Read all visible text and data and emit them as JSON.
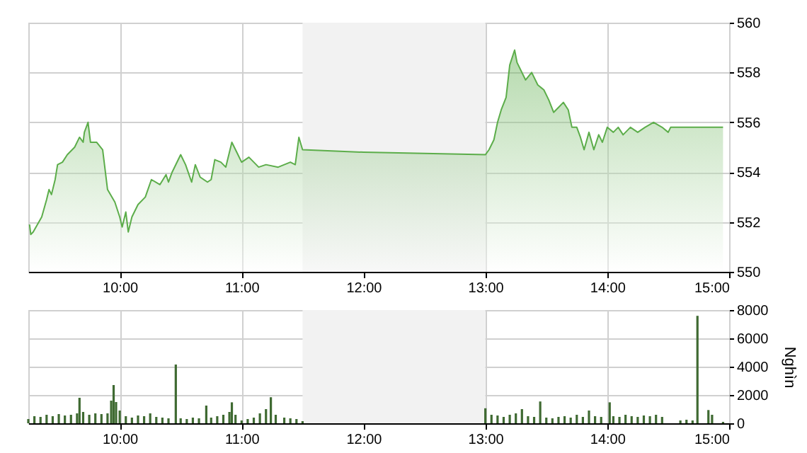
{
  "chart_data": [
    {
      "type": "area",
      "xlim": [
        9.25,
        15
      ],
      "xticks": [
        {
          "value": 10,
          "label": "10:00"
        },
        {
          "value": 11,
          "label": "11:00"
        },
        {
          "value": 12,
          "label": "12:00"
        },
        {
          "value": 13,
          "label": "13:00"
        },
        {
          "value": 14,
          "label": "14:00"
        },
        {
          "value": 15,
          "label": "15:00"
        }
      ],
      "ylim": [
        550,
        560
      ],
      "yticks": [
        550,
        552,
        554,
        556,
        558,
        560
      ],
      "grid": true,
      "bands": [
        {
          "axis": "x",
          "from": 11.5,
          "to": 13,
          "color": "#f2f2f2"
        }
      ],
      "series": [
        {
          "color": "#5cad4a",
          "x": [
            9.26,
            9.27,
            9.29,
            9.36,
            9.4,
            9.42,
            9.44,
            9.47,
            9.49,
            9.53,
            9.57,
            9.63,
            9.67,
            9.7,
            9.71,
            9.74,
            9.76,
            9.81,
            9.86,
            9.9,
            9.96,
            10.0,
            10.02,
            10.05,
            10.07,
            10.1,
            10.15,
            10.21,
            10.26,
            10.33,
            10.38,
            10.4,
            10.43,
            10.5,
            10.54,
            10.59,
            10.62,
            10.66,
            10.72,
            10.75,
            10.78,
            10.83,
            10.87,
            10.92,
            10.97,
            11.0,
            11.06,
            11.14,
            11.2,
            11.3,
            11.4,
            11.44,
            11.47,
            11.5,
            12.0,
            13.0,
            13.03,
            13.07,
            13.1,
            13.13,
            13.17,
            13.2,
            13.24,
            13.26,
            13.33,
            13.38,
            13.43,
            13.48,
            13.52,
            13.56,
            13.6,
            13.64,
            13.68,
            13.71,
            13.75,
            13.78,
            13.81,
            13.85,
            13.89,
            13.93,
            13.96,
            14.0,
            14.05,
            14.09,
            14.13,
            14.19,
            14.25,
            14.31,
            14.38,
            14.45,
            14.5,
            14.52,
            14.95
          ],
          "values": [
            551.9,
            551.5,
            551.6,
            552.2,
            552.9,
            553.3,
            553.1,
            553.7,
            554.3,
            554.4,
            554.7,
            555.0,
            555.4,
            555.2,
            555.6,
            556.0,
            555.2,
            555.2,
            554.9,
            553.3,
            552.8,
            552.2,
            551.8,
            552.4,
            551.6,
            552.2,
            552.7,
            553.0,
            553.7,
            553.5,
            553.9,
            553.6,
            554.0,
            554.7,
            554.3,
            553.6,
            554.3,
            553.8,
            553.6,
            553.7,
            554.5,
            554.4,
            554.2,
            555.2,
            554.7,
            554.4,
            554.6,
            554.2,
            554.3,
            554.2,
            554.4,
            554.3,
            555.4,
            554.9,
            554.8,
            554.7,
            554.9,
            555.3,
            556.0,
            556.5,
            557.0,
            558.3,
            558.9,
            558.4,
            557.7,
            558.0,
            557.5,
            557.3,
            556.9,
            556.4,
            556.6,
            556.8,
            556.5,
            555.8,
            555.8,
            555.4,
            554.9,
            555.6,
            554.9,
            555.5,
            555.2,
            555.8,
            555.6,
            555.8,
            555.5,
            555.8,
            555.6,
            555.8,
            556.0,
            555.8,
            555.6,
            555.8,
            555.8
          ]
        }
      ]
    },
    {
      "type": "bar",
      "xlim": [
        9.25,
        15
      ],
      "xticks": [
        {
          "value": 10,
          "label": "10:00"
        },
        {
          "value": 11,
          "label": "11:00"
        },
        {
          "value": 12,
          "label": "12:00"
        },
        {
          "value": 13,
          "label": "13:00"
        },
        {
          "value": 14,
          "label": "14:00"
        },
        {
          "value": 15,
          "label": "15:00"
        }
      ],
      "ylim": [
        0,
        8000
      ],
      "yticks": [
        0,
        2000,
        4000,
        6000,
        8000
      ],
      "ylabel": "Nghìn",
      "grid": true,
      "bands": [
        {
          "axis": "x",
          "from": 11.5,
          "to": 13,
          "color": "#f2f2f2"
        }
      ],
      "series": [
        {
          "color": "#3f6a32",
          "x": [
            9.25,
            9.3,
            9.35,
            9.4,
            9.45,
            9.5,
            9.55,
            9.6,
            9.65,
            9.67,
            9.7,
            9.75,
            9.8,
            9.85,
            9.9,
            9.93,
            9.95,
            9.97,
            10.0,
            10.05,
            10.1,
            10.15,
            10.2,
            10.25,
            10.3,
            10.35,
            10.4,
            10.46,
            10.5,
            10.55,
            10.6,
            10.65,
            10.71,
            10.75,
            10.8,
            10.85,
            10.9,
            10.92,
            10.95,
            11.0,
            11.05,
            11.1,
            11.15,
            11.2,
            11.24,
            11.28,
            11.35,
            11.4,
            11.45,
            11.5,
            13.0,
            13.05,
            13.1,
            13.15,
            13.2,
            13.25,
            13.3,
            13.35,
            13.4,
            13.45,
            13.5,
            13.55,
            13.6,
            13.65,
            13.7,
            13.75,
            13.8,
            13.85,
            13.9,
            13.95,
            14.02,
            14.05,
            14.1,
            14.15,
            14.2,
            14.25,
            14.3,
            14.35,
            14.4,
            14.45,
            14.6,
            14.65,
            14.7,
            14.74,
            14.83,
            14.86,
            14.95
          ],
          "values": [
            300,
            500,
            450,
            600,
            500,
            650,
            550,
            600,
            700,
            1800,
            800,
            600,
            700,
            650,
            700,
            1600,
            2700,
            1500,
            900,
            500,
            400,
            550,
            500,
            700,
            450,
            400,
            350,
            4150,
            350,
            300,
            400,
            350,
            1250,
            400,
            500,
            600,
            800,
            1480,
            600,
            200,
            300,
            400,
            700,
            1000,
            1840,
            600,
            400,
            350,
            300,
            150,
            1060,
            600,
            550,
            450,
            600,
            700,
            1000,
            500,
            450,
            1540,
            400,
            350,
            450,
            500,
            400,
            600,
            450,
            900,
            500,
            450,
            1480,
            500,
            450,
            600,
            500,
            450,
            550,
            500,
            600,
            450,
            200,
            250,
            200,
            7590,
            935,
            600,
            100
          ]
        }
      ]
    }
  ]
}
